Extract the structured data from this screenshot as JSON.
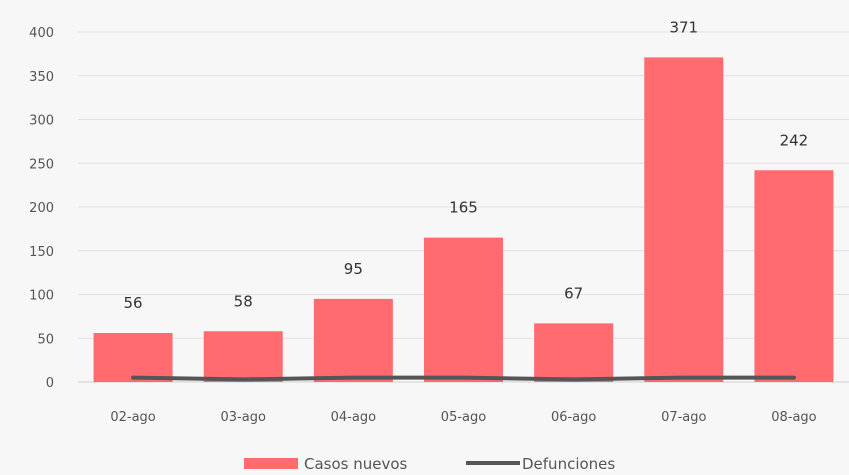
{
  "chart_data": {
    "type": "bar",
    "categories": [
      "02-ago",
      "03-ago",
      "04-ago",
      "05-ago",
      "06-ago",
      "07-ago",
      "08-ago"
    ],
    "series": [
      {
        "name": "Casos nuevos",
        "kind": "bar",
        "color": "#ff6b6e",
        "values": [
          56,
          58,
          95,
          165,
          67,
          371,
          242
        ]
      },
      {
        "name": "Defunciones",
        "kind": "line",
        "color": "#555555",
        "values": [
          5,
          3,
          5,
          5,
          3,
          5,
          5
        ]
      }
    ],
    "data_labels": [
      "56",
      "58",
      "95",
      "165",
      "67",
      "371",
      "242"
    ],
    "ylim": [
      0,
      400
    ],
    "yticks": [
      0,
      50,
      100,
      150,
      200,
      250,
      300,
      350,
      400
    ],
    "grid": true,
    "legend": "bottom"
  }
}
